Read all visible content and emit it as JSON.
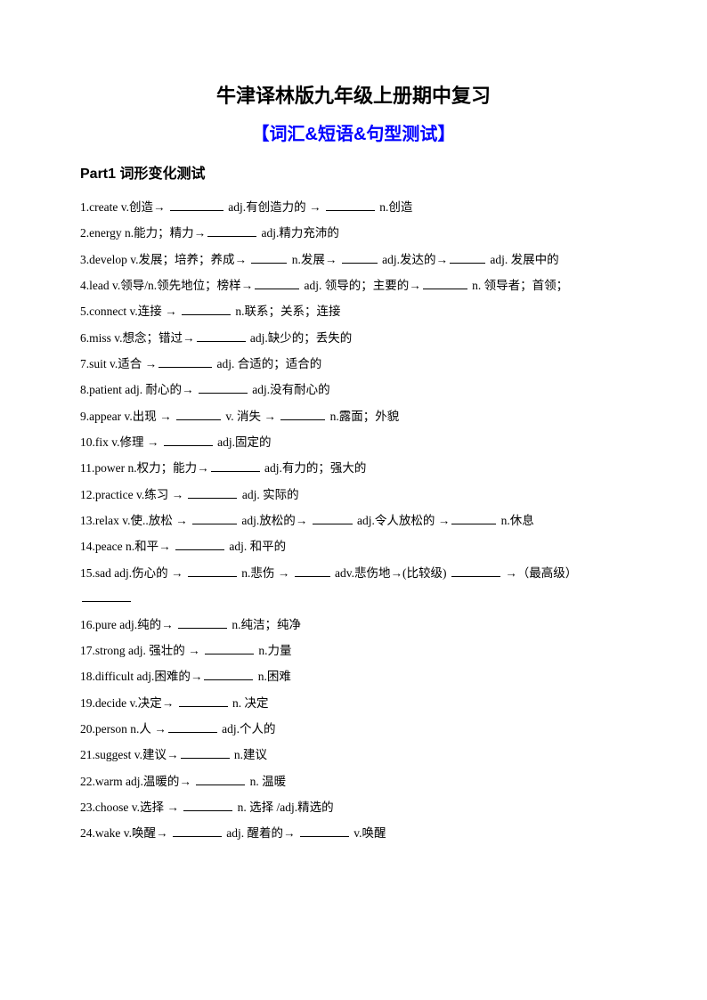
{
  "title": "牛津译林版九年级上册期中复习",
  "subtitle": "【词汇&短语&句型测试】",
  "partHeading": "Part1  词形变化测试",
  "items": [
    {
      "num": "1",
      "text": [
        "1.create v.创造→ ",
        " adj.有创造力的  → ",
        " n.创造"
      ],
      "blanks": [
        "60",
        "55"
      ]
    },
    {
      "num": "2",
      "text": [
        "2.energy n.能力；精力→",
        " adj.精力充沛的"
      ],
      "blanks": [
        "55"
      ]
    },
    {
      "num": "3",
      "text": [
        "3.develop v.发展；培养；养成→ ",
        " n.发展→ ",
        " adj.发达的→",
        " adj. 发展中的"
      ],
      "blanks": [
        "40",
        "40",
        "40"
      ]
    },
    {
      "num": "4",
      "text": [
        "4.lead v.领导/n.领先地位；榜样→",
        " adj. 领导的；主要的→",
        " n. 领导者；首领；"
      ],
      "blanks": [
        "50",
        "50"
      ]
    },
    {
      "num": "5",
      "text": [
        "5.connect v.连接  → ",
        " n.联系；关系；连接"
      ],
      "blanks": [
        "55"
      ]
    },
    {
      "num": "6",
      "text": [
        "6.miss v.想念；错过→",
        " adj.缺少的；丢失的"
      ],
      "blanks": [
        "55"
      ]
    },
    {
      "num": "7",
      "text": [
        "7.suit v.适合  →",
        " adj. 合适的；适合的"
      ],
      "blanks": [
        "60"
      ]
    },
    {
      "num": "8",
      "text": [
        "8.patient adj. 耐心的→ ",
        " adj.没有耐心的"
      ],
      "blanks": [
        "55"
      ]
    },
    {
      "num": "9",
      "text": [
        "9.appear v.出现  → ",
        " v. 消失  → ",
        " n.露面；外貌"
      ],
      "blanks": [
        "50",
        "50"
      ]
    },
    {
      "num": "10",
      "text": [
        "10.fix v.修理  → ",
        " adj.固定的"
      ],
      "blanks": [
        "55"
      ]
    },
    {
      "num": "11",
      "text": [
        "11.power n.权力；能力→",
        " adj.有力的；强大的"
      ],
      "blanks": [
        "55"
      ]
    },
    {
      "num": "12",
      "text": [
        "12.practice v.练习  → ",
        " adj. 实际的"
      ],
      "blanks": [
        "55"
      ]
    },
    {
      "num": "13",
      "text": [
        "13.relax v.使..放松  → ",
        " adj.放松的→ ",
        " adj.令人放松的  →",
        " n.休息"
      ],
      "blanks": [
        "50",
        "45",
        "50"
      ]
    },
    {
      "num": "14",
      "text": [
        "14.peace n.和平→ ",
        " adj. 和平的"
      ],
      "blanks": [
        "55"
      ]
    },
    {
      "num": "15",
      "text": [
        "15.sad adj.伤心的  → ",
        " n.悲伤  → ",
        " adv.悲伤地→(比较级) ",
        "  →（最高级）",
        ""
      ],
      "blanks": [
        "55",
        "40",
        "55",
        "55"
      ]
    },
    {
      "num": "16",
      "text": [
        "16.pure adj.纯的→ ",
        " n.纯洁；纯净"
      ],
      "blanks": [
        "55"
      ]
    },
    {
      "num": "17",
      "text": [
        "17.strong adj. 强壮的  → ",
        " n.力量"
      ],
      "blanks": [
        "55"
      ]
    },
    {
      "num": "18",
      "text": [
        "18.difficult adj.困难的→",
        " n.困难"
      ],
      "blanks": [
        "55"
      ]
    },
    {
      "num": "19",
      "text": [
        "19.decide v.决定→ ",
        " n. 决定"
      ],
      "blanks": [
        "55"
      ]
    },
    {
      "num": "20",
      "text": [
        "20.person n.人  →",
        " adj.个人的"
      ],
      "blanks": [
        "55"
      ]
    },
    {
      "num": "21",
      "text": [
        "21.suggest v.建议→",
        " n.建议"
      ],
      "blanks": [
        "55"
      ]
    },
    {
      "num": "22",
      "text": [
        "22.warm adj.温暖的→ ",
        " n. 温暖"
      ],
      "blanks": [
        "55"
      ]
    },
    {
      "num": "23",
      "text": [
        "23.choose v.选择  → ",
        " n. 选择 /adj.精选的"
      ],
      "blanks": [
        "55"
      ]
    },
    {
      "num": "24",
      "text": [
        "24.wake v.唤醒→ ",
        " adj. 醒着的→ ",
        " v.唤醒"
      ],
      "blanks": [
        "55",
        "55"
      ]
    }
  ]
}
